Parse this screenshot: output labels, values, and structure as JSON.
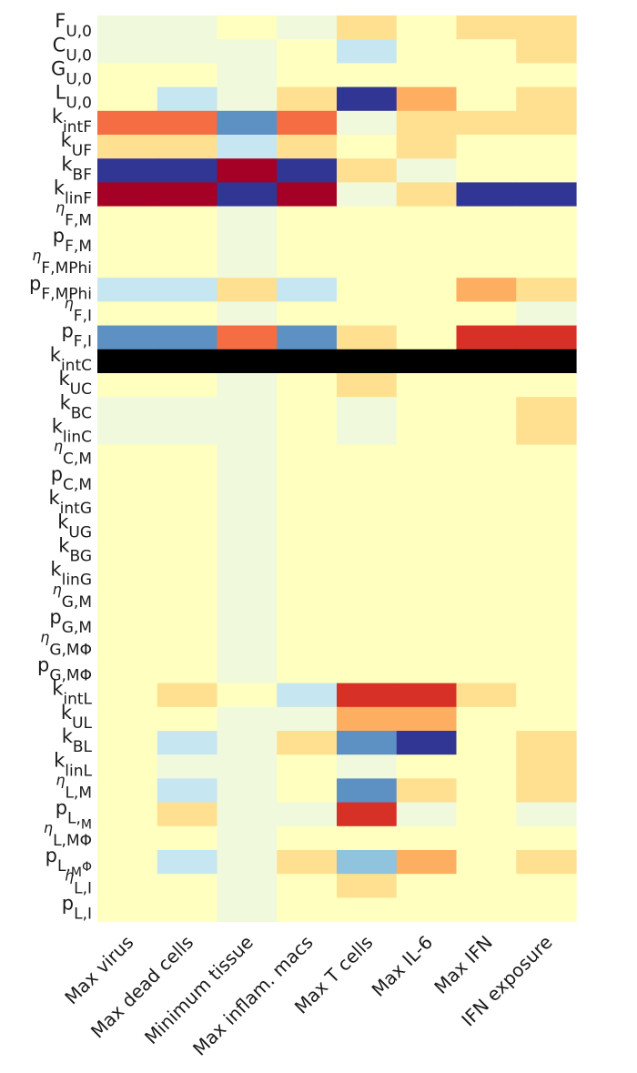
{
  "chart_data": {
    "type": "heatmap",
    "title": "",
    "xlabel": "",
    "ylabel": "",
    "columns": [
      "Max virus",
      "Max dead cells",
      "Minimum tissue",
      "Max inflam. macs",
      "Max T cells",
      "Max IL-6",
      "Max IFN",
      "IFN exposure"
    ],
    "rows": [
      {
        "base": "F",
        "sub": "U,0",
        "greek": false
      },
      {
        "base": "C",
        "sub": "U,0",
        "greek": false
      },
      {
        "base": "G",
        "sub": "U,0",
        "greek": false
      },
      {
        "base": "L",
        "sub": "U,0",
        "greek": false
      },
      {
        "base": "k",
        "sub": "intF",
        "greek": false
      },
      {
        "base": "k",
        "sub": "UF",
        "greek": false
      },
      {
        "base": "k",
        "sub": "BF",
        "greek": false
      },
      {
        "base": "k",
        "sub": "linF",
        "greek": false
      },
      {
        "base": "η",
        "sub": "F,M",
        "greek": true
      },
      {
        "base": "p",
        "sub": "F,M",
        "greek": false
      },
      {
        "base": "η",
        "sub": "F,MPhi",
        "greek": true
      },
      {
        "base": "p",
        "sub": "F,MPhi",
        "greek": false
      },
      {
        "base": "η",
        "sub": "F,I",
        "greek": true
      },
      {
        "base": "p",
        "sub": "F,I",
        "greek": false
      },
      {
        "base": "k",
        "sub": "intC",
        "greek": false
      },
      {
        "base": "k",
        "sub": "UC",
        "greek": false
      },
      {
        "base": "k",
        "sub": "BC",
        "greek": false
      },
      {
        "base": "k",
        "sub": "linC",
        "greek": false
      },
      {
        "base": "η",
        "sub": "C,M",
        "greek": true
      },
      {
        "base": "p",
        "sub": "C,M",
        "greek": false
      },
      {
        "base": "k",
        "sub": "intG",
        "greek": false
      },
      {
        "base": "k",
        "sub": "UG",
        "greek": false
      },
      {
        "base": "k",
        "sub": "BG",
        "greek": false
      },
      {
        "base": "k",
        "sub": "linG",
        "greek": false
      },
      {
        "base": "η",
        "sub": "G,M",
        "greek": true
      },
      {
        "base": "p",
        "sub": "G,M",
        "greek": false
      },
      {
        "base": "η",
        "sub": "G,MΦ",
        "greek": true
      },
      {
        "base": "p",
        "sub": "G,MΦ",
        "greek": false
      },
      {
        "base": "k",
        "sub": "intL",
        "greek": false
      },
      {
        "base": "k",
        "sub": "UL",
        "greek": false
      },
      {
        "base": "k",
        "sub": "BL",
        "greek": false
      },
      {
        "base": "k",
        "sub": "linL",
        "greek": false
      },
      {
        "base": "η",
        "sub": "L,M",
        "greek": true
      },
      {
        "base": "p",
        "sub": "L,",
        "greek": false,
        "sub2": "M"
      },
      {
        "base": "η",
        "sub": "L,MΦ",
        "greek": true
      },
      {
        "base": "p",
        "sub": "L,",
        "greek": false,
        "sub2": "M",
        "sub3": "Φ"
      },
      {
        "base": "η",
        "sub": "L,I",
        "greek": true
      },
      {
        "base": "p",
        "sub": "L,I",
        "greek": false
      }
    ],
    "values": [
      [
        -0.1,
        -0.1,
        0.0,
        -0.1,
        0.2,
        0.0,
        0.2,
        0.2
      ],
      [
        -0.1,
        -0.1,
        -0.1,
        0.0,
        -0.3,
        0.0,
        0.0,
        0.2
      ],
      [
        0.0,
        0.0,
        -0.1,
        0.0,
        0.0,
        0.0,
        0.0,
        0.0
      ],
      [
        0.0,
        -0.3,
        -0.1,
        0.2,
        -1.0,
        0.4,
        0.0,
        0.2
      ],
      [
        0.6,
        0.6,
        -0.7,
        0.6,
        -0.1,
        0.2,
        0.2,
        0.2
      ],
      [
        0.2,
        0.2,
        -0.3,
        0.2,
        0.0,
        0.2,
        0.0,
        0.0
      ],
      [
        -1.0,
        -1.0,
        1.0,
        -1.0,
        0.2,
        -0.1,
        0.0,
        0.0
      ],
      [
        1.0,
        1.0,
        -1.0,
        1.0,
        -0.1,
        0.2,
        -1.0,
        -1.0
      ],
      [
        0.0,
        0.0,
        -0.1,
        0.0,
        0.0,
        0.0,
        0.0,
        0.0
      ],
      [
        0.0,
        0.0,
        -0.1,
        0.0,
        0.0,
        0.0,
        0.0,
        0.0
      ],
      [
        0.0,
        0.0,
        -0.1,
        0.0,
        0.0,
        0.0,
        0.0,
        0.0
      ],
      [
        -0.3,
        -0.3,
        0.2,
        -0.3,
        0.0,
        0.0,
        0.4,
        0.2
      ],
      [
        0.0,
        0.0,
        -0.1,
        0.0,
        0.0,
        0.0,
        0.0,
        -0.1
      ],
      [
        -0.7,
        -0.7,
        0.6,
        -0.7,
        0.2,
        0.0,
        0.8,
        0.8
      ],
      [
        null,
        null,
        null,
        null,
        null,
        null,
        null,
        null
      ],
      [
        0.0,
        0.0,
        -0.1,
        0.0,
        0.2,
        0.0,
        0.0,
        0.0
      ],
      [
        -0.1,
        -0.1,
        -0.1,
        0.0,
        -0.1,
        0.0,
        0.0,
        0.2
      ],
      [
        -0.1,
        -0.1,
        -0.1,
        0.0,
        -0.1,
        0.0,
        0.0,
        0.2
      ],
      [
        0.0,
        0.0,
        -0.1,
        0.0,
        0.0,
        0.0,
        0.0,
        0.0
      ],
      [
        0.0,
        0.0,
        -0.1,
        0.0,
        0.0,
        0.0,
        0.0,
        0.0
      ],
      [
        0.0,
        0.0,
        -0.1,
        0.0,
        0.0,
        0.0,
        0.0,
        0.0
      ],
      [
        0.0,
        0.0,
        -0.1,
        0.0,
        0.0,
        0.0,
        0.0,
        0.0
      ],
      [
        0.0,
        0.0,
        -0.1,
        0.0,
        0.0,
        0.0,
        0.0,
        0.0
      ],
      [
        0.0,
        0.0,
        -0.1,
        0.0,
        0.0,
        0.0,
        0.0,
        0.0
      ],
      [
        0.0,
        0.0,
        -0.1,
        0.0,
        0.0,
        0.0,
        0.0,
        0.0
      ],
      [
        0.0,
        0.0,
        -0.1,
        0.0,
        0.0,
        0.0,
        0.0,
        0.0
      ],
      [
        0.0,
        0.0,
        -0.1,
        0.0,
        0.0,
        0.0,
        0.0,
        0.0
      ],
      [
        0.0,
        0.0,
        -0.1,
        0.0,
        0.0,
        0.0,
        0.0,
        0.0
      ],
      [
        0.0,
        0.2,
        0.0,
        -0.3,
        0.8,
        0.8,
        0.2,
        0.0
      ],
      [
        0.0,
        0.0,
        -0.1,
        -0.1,
        0.4,
        0.4,
        0.0,
        0.0
      ],
      [
        0.0,
        -0.3,
        -0.1,
        0.2,
        -0.7,
        -1.0,
        0.0,
        0.2
      ],
      [
        0.0,
        -0.1,
        -0.1,
        0.0,
        -0.1,
        0.0,
        0.0,
        0.2
      ],
      [
        0.0,
        -0.3,
        -0.1,
        0.0,
        -0.7,
        0.2,
        0.0,
        0.2
      ],
      [
        0.0,
        0.2,
        -0.1,
        -0.1,
        0.8,
        -0.1,
        0.0,
        -0.1
      ],
      [
        0.0,
        0.0,
        -0.1,
        0.0,
        0.0,
        0.0,
        0.0,
        0.0
      ],
      [
        0.0,
        -0.3,
        -0.1,
        0.2,
        -0.5,
        0.4,
        0.0,
        0.2
      ],
      [
        0.0,
        0.0,
        -0.1,
        0.0,
        0.2,
        0.0,
        0.0,
        0.0
      ],
      [
        0.0,
        0.0,
        -0.1,
        0.0,
        0.0,
        0.0,
        0.0,
        0.0
      ]
    ],
    "vrange": [
      -1,
      1
    ],
    "colormap": "RdYlBu_r",
    "colormap_stops": [
      "#313695",
      "#4575b4",
      "#74add1",
      "#abd9e9",
      "#e0f3f8",
      "#ffffbf",
      "#fee090",
      "#fdae61",
      "#f46d43",
      "#d73027",
      "#a50026"
    ],
    "missing_color": "#000000",
    "grid": false,
    "legend": "none"
  }
}
